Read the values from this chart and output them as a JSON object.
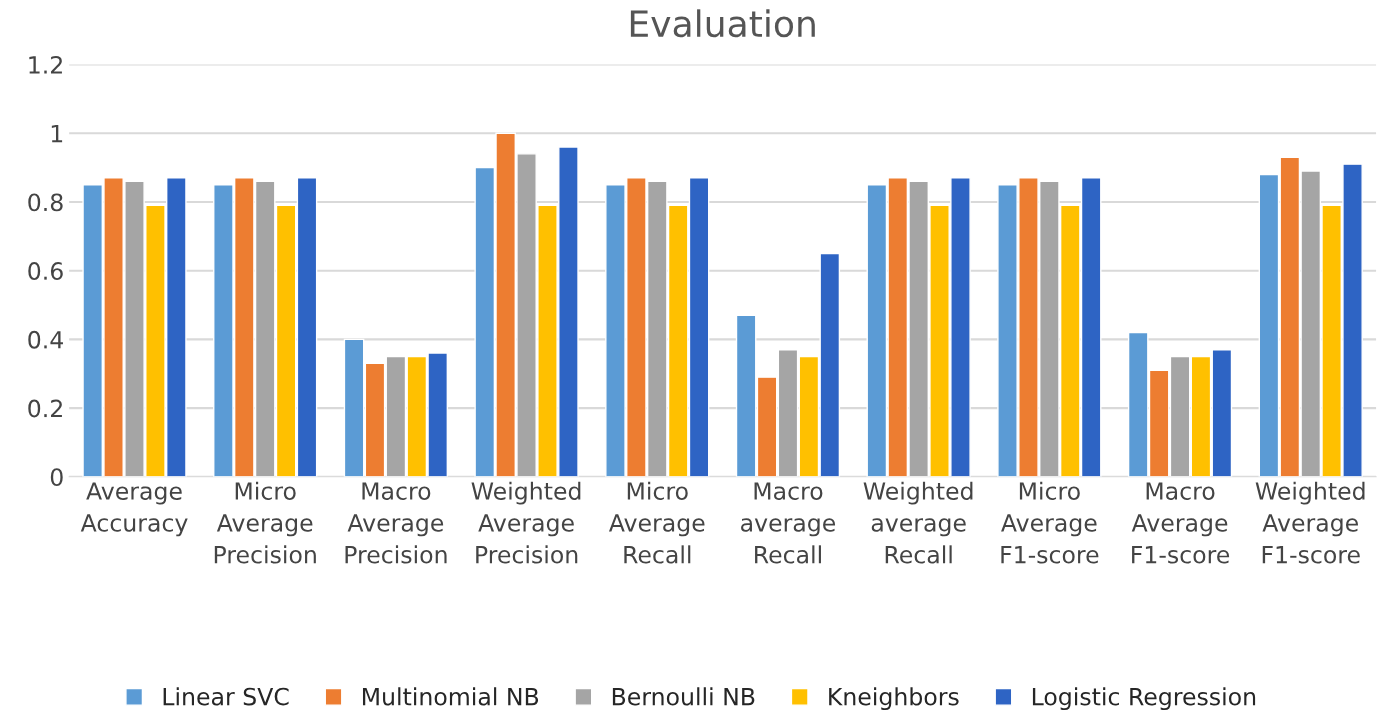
{
  "chart_data": {
    "type": "bar",
    "title": "Evaluation",
    "categories": [
      "Average\nAccuracy",
      "Micro\nAverage\nPrecision",
      "Macro\nAverage\nPrecision",
      "Weighted\nAverage\nPrecision",
      "Micro\nAverage\nRecall",
      "Macro\naverage\nRecall",
      "Weighted\naverage\nRecall",
      "Micro\nAverage\nF1-score",
      "Macro\nAverage\nF1-score",
      "Weighted\nAverage\nF1-score"
    ],
    "series": [
      {
        "name": "Linear SVC",
        "color": "#5b9bd5",
        "values": [
          0.85,
          0.85,
          0.4,
          0.9,
          0.85,
          0.47,
          0.85,
          0.85,
          0.42,
          0.88
        ]
      },
      {
        "name": "Multinomial NB",
        "color": "#ed7d31",
        "values": [
          0.87,
          0.87,
          0.33,
          1.0,
          0.87,
          0.29,
          0.87,
          0.87,
          0.31,
          0.93
        ]
      },
      {
        "name": "Bernoulli NB",
        "color": "#a5a5a5",
        "values": [
          0.86,
          0.86,
          0.35,
          0.94,
          0.86,
          0.37,
          0.86,
          0.86,
          0.35,
          0.89
        ]
      },
      {
        "name": "Kneighbors",
        "color": "#ffc000",
        "values": [
          0.79,
          0.79,
          0.35,
          0.79,
          0.79,
          0.35,
          0.79,
          0.79,
          0.35,
          0.79
        ]
      },
      {
        "name": "Logistic Regression",
        "color": "#2e64c4",
        "values": [
          0.87,
          0.87,
          0.36,
          0.96,
          0.87,
          0.65,
          0.87,
          0.87,
          0.37,
          0.91
        ]
      }
    ],
    "ylim": [
      0,
      1.2
    ],
    "yticks": [
      0,
      0.2,
      0.4,
      0.6,
      0.8,
      1,
      1.2
    ],
    "grid": "y",
    "legend": "bottom"
  }
}
